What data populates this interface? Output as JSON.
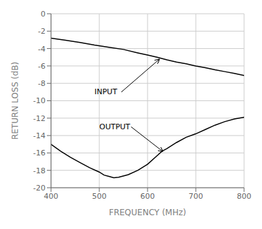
{
  "chart_data": {
    "type": "line",
    "xlabel": "FREQUENCY (MHz)",
    "ylabel": "RETURN LOSS (dB)",
    "xlim": [
      400,
      800
    ],
    "ylim": [
      -20,
      0
    ],
    "xticks": [
      400,
      500,
      600,
      700,
      800
    ],
    "yticks": [
      0,
      -2,
      -4,
      -6,
      -8,
      -10,
      -12,
      -14,
      -16,
      -18,
      -20
    ],
    "grid": true,
    "series": [
      {
        "color": "#000000",
        "x": [
          400,
          430,
          460,
          490,
          520,
          550,
          580,
          600,
          620,
          640,
          660,
          680,
          700,
          720,
          740,
          760,
          780,
          800
        ],
        "values": [
          -2.8,
          -3.05,
          -3.3,
          -3.6,
          -3.85,
          -4.1,
          -4.5,
          -4.75,
          -5.0,
          -5.3,
          -5.55,
          -5.75,
          -6.0,
          -6.2,
          -6.45,
          -6.65,
          -6.85,
          -7.1
        ]
      },
      {
        "color": "#000000",
        "x": [
          400,
          420,
          440,
          460,
          480,
          500,
          510,
          520,
          530,
          540,
          560,
          580,
          600,
          620,
          630,
          640,
          660,
          680,
          700,
          720,
          740,
          760,
          780,
          800
        ],
        "values": [
          -15.0,
          -15.8,
          -16.5,
          -17.1,
          -17.7,
          -18.2,
          -18.55,
          -18.7,
          -18.85,
          -18.8,
          -18.5,
          -18.0,
          -17.3,
          -16.3,
          -15.8,
          -15.5,
          -14.8,
          -14.2,
          -13.8,
          -13.3,
          -12.8,
          -12.4,
          -12.1,
          -11.9
        ]
      }
    ],
    "annotations": [
      {
        "text": "INPUT",
        "xy": [
          625,
          -5.2
        ],
        "xytext": [
          490,
          -9.0
        ]
      },
      {
        "text": "OUTPUT",
        "xy": [
          632,
          -15.85
        ],
        "xytext": [
          500,
          -13.0
        ]
      }
    ]
  }
}
